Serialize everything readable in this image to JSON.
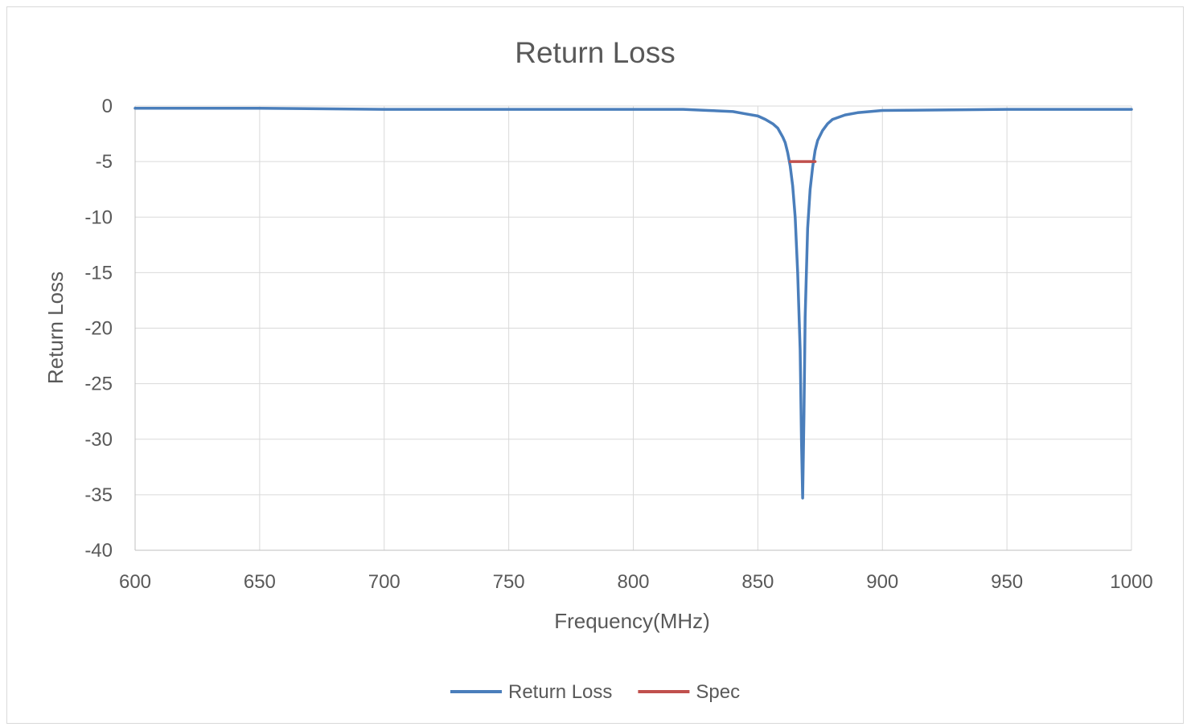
{
  "chart_data": {
    "type": "line",
    "title": "Return Loss",
    "xlabel": "Frequency(MHz)",
    "ylabel": "Return Loss",
    "xlim": [
      600,
      1000
    ],
    "ylim": [
      -40,
      0
    ],
    "x_ticks": [
      "600",
      "650",
      "700",
      "750",
      "800",
      "850",
      "900",
      "950",
      "1000"
    ],
    "y_ticks": [
      "0",
      "-5",
      "-10",
      "-15",
      "-20",
      "-25",
      "-30",
      "-35",
      "-40"
    ],
    "grid": true,
    "legend_position": "bottom",
    "series": [
      {
        "name": "Return Loss",
        "color": "#4a7ebb",
        "x": [
          600,
          650,
          700,
          750,
          800,
          820,
          830,
          840,
          845,
          850,
          853,
          856,
          858,
          860,
          861,
          862,
          863,
          864,
          865,
          866,
          867,
          867.5,
          868,
          868.5,
          869,
          870,
          871,
          872,
          873,
          874,
          876,
          878,
          880,
          885,
          890,
          900,
          950,
          1000
        ],
        "y": [
          -0.2,
          -0.2,
          -0.3,
          -0.3,
          -0.3,
          -0.3,
          -0.4,
          -0.5,
          -0.7,
          -0.9,
          -1.2,
          -1.6,
          -2.0,
          -2.8,
          -3.3,
          -4.2,
          -5.4,
          -7.2,
          -10.0,
          -15.0,
          -22.0,
          -30.0,
          -35.3,
          -28.0,
          -19.0,
          -11.0,
          -7.5,
          -5.5,
          -4.0,
          -3.1,
          -2.2,
          -1.6,
          -1.2,
          -0.8,
          -0.6,
          -0.4,
          -0.3,
          -0.3
        ]
      },
      {
        "name": "Spec",
        "color": "#c0504d",
        "x": [
          863,
          873
        ],
        "y": [
          -5,
          -5
        ]
      }
    ]
  }
}
